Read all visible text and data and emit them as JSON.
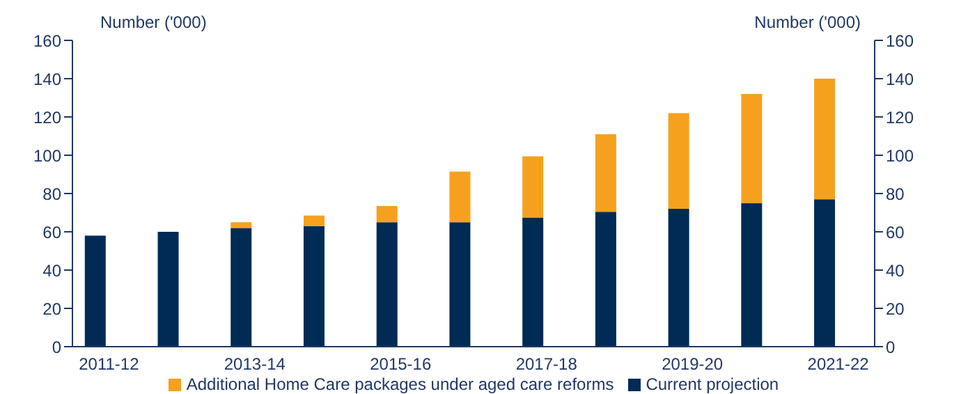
{
  "chart_data": {
    "type": "bar",
    "stacked": true,
    "ylabel": "Number ('000)",
    "y2label": "Number ('000)",
    "categories": [
      "2011-12",
      null,
      "2013-14",
      null,
      "2015-16",
      null,
      "2017-18",
      null,
      "2019-20",
      null,
      "2021-22"
    ],
    "series": [
      {
        "name": "Current projection",
        "color": "#002b54",
        "values": [
          58,
          60,
          62,
          63,
          65,
          65,
          67.5,
          70.5,
          72,
          75,
          77
        ]
      },
      {
        "name": "Additional Home Care packages under aged care reforms",
        "color": "#f5a11d",
        "values": [
          0,
          0,
          3,
          5.5,
          8.5,
          26.5,
          32,
          40.5,
          50,
          57,
          63
        ]
      }
    ],
    "ylim": [
      0,
      160
    ],
    "yticks": [
      0,
      20,
      40,
      60,
      80,
      100,
      120,
      140,
      160
    ],
    "y2lim": [
      0,
      160
    ],
    "y2ticks": [
      0,
      20,
      40,
      60,
      80,
      100,
      120,
      140,
      160
    ],
    "grid": false,
    "legend": "bottom"
  }
}
